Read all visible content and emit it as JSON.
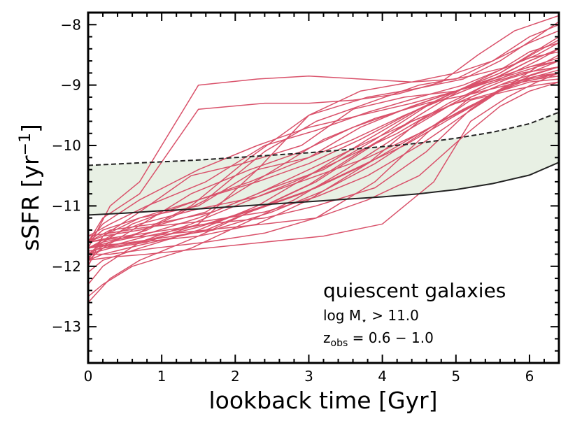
{
  "chart_data": {
    "type": "line",
    "title": "",
    "xlabel": "lookback time [Gyr]",
    "ylabel_main": "sSFR [yr",
    "ylabel_sup": "−1",
    "ylabel_close": "]",
    "xlim": [
      0,
      6.4
    ],
    "ylim": [
      -13.6,
      -7.8
    ],
    "xticks": [
      0,
      1,
      2,
      3,
      4,
      5,
      6
    ],
    "xtick_labels": [
      "0",
      "1",
      "2",
      "3",
      "4",
      "5",
      "6"
    ],
    "yticks": [
      -13,
      -12,
      -11,
      -10,
      -9,
      -8
    ],
    "ytick_labels": [
      "−13",
      "−12",
      "−11",
      "−10",
      "−9",
      "−8"
    ],
    "grid": false,
    "annotation": {
      "title": "quiescent galaxies",
      "mass_text": "log M",
      "mass_sub": "⋆",
      "mass_cond": " > 11.0",
      "z_text": "z",
      "z_sub": "obs",
      "z_cond": " = 0.6 − 1.0"
    },
    "colors": {
      "tracks": "#d9516a",
      "band_fill": "#e8f0e4",
      "band_edge": "#222222"
    },
    "band": {
      "x": [
        0,
        0.5,
        1,
        1.5,
        2,
        2.5,
        3,
        3.5,
        4,
        4.5,
        5,
        5.5,
        6,
        6.4
      ],
      "upper": [
        -10.33,
        -10.3,
        -10.27,
        -10.24,
        -10.2,
        -10.16,
        -10.12,
        -10.07,
        -10.02,
        -9.96,
        -9.88,
        -9.78,
        -9.64,
        -9.45
      ],
      "lower": [
        -11.15,
        -11.12,
        -11.08,
        -11.05,
        -11.01,
        -10.97,
        -10.93,
        -10.89,
        -10.85,
        -10.8,
        -10.73,
        -10.63,
        -10.49,
        -10.28
      ]
    },
    "series": [
      {
        "x": [
          0,
          0.3,
          0.7,
          1.5,
          2.3,
          3.0,
          3.7,
          4.4,
          5.0,
          5.5,
          6.0,
          6.4
        ],
        "values": [
          -11.7,
          -11.0,
          -10.6,
          -9.0,
          -8.9,
          -8.85,
          -8.9,
          -8.95,
          -8.9,
          -8.6,
          -8.2,
          -8.0
        ]
      },
      {
        "x": [
          0,
          0.2,
          0.7,
          1.5,
          2.4,
          3.0,
          3.6,
          4.2,
          4.8,
          5.3,
          5.8,
          6.4
        ],
        "values": [
          -11.6,
          -11.2,
          -10.8,
          -9.4,
          -9.3,
          -9.3,
          -9.25,
          -9.15,
          -8.95,
          -8.5,
          -8.1,
          -7.85
        ]
      },
      {
        "x": [
          0,
          0.2,
          0.7,
          1.4,
          2.1,
          2.9,
          3.6,
          4.3,
          5.0,
          5.6,
          6.1,
          6.4
        ],
        "values": [
          -11.9,
          -11.5,
          -11.1,
          -10.5,
          -10.3,
          -10.0,
          -9.4,
          -9.2,
          -9.1,
          -8.9,
          -8.6,
          -8.4
        ]
      },
      {
        "x": [
          0,
          0.3,
          0.8,
          1.6,
          2.4,
          3.1,
          3.8,
          4.5,
          5.2,
          5.7,
          6.1,
          6.4
        ],
        "values": [
          -11.7,
          -11.6,
          -11.4,
          -10.9,
          -10.1,
          -9.6,
          -9.3,
          -9.0,
          -8.85,
          -8.7,
          -8.5,
          -8.3
        ]
      },
      {
        "x": [
          0,
          0.2,
          0.7,
          1.5,
          2.3,
          3.0,
          3.7,
          4.4,
          5.0,
          5.6,
          6.1,
          6.4
        ],
        "values": [
          -12.0,
          -11.5,
          -11.2,
          -11.0,
          -10.4,
          -10.2,
          -9.7,
          -9.35,
          -9.1,
          -8.8,
          -8.45,
          -8.25
        ]
      },
      {
        "x": [
          0,
          0.3,
          0.8,
          1.6,
          2.4,
          3.1,
          3.8,
          4.5,
          5.1,
          5.6,
          6.0,
          6.4
        ],
        "values": [
          -11.5,
          -11.3,
          -11.0,
          -10.6,
          -10.0,
          -9.75,
          -9.45,
          -9.2,
          -9.0,
          -8.75,
          -8.55,
          -8.45
        ]
      },
      {
        "x": [
          0,
          0.2,
          0.6,
          1.5,
          2.2,
          2.8,
          3.6,
          4.3,
          5.0,
          5.5,
          6.0,
          6.4
        ],
        "values": [
          -11.8,
          -11.6,
          -11.3,
          -10.9,
          -10.6,
          -10.3,
          -9.9,
          -9.5,
          -9.15,
          -8.9,
          -8.7,
          -8.55
        ]
      },
      {
        "x": [
          0,
          0.3,
          0.9,
          1.7,
          2.5,
          3.2,
          3.9,
          4.6,
          5.2,
          5.7,
          6.1,
          6.4
        ],
        "values": [
          -11.6,
          -11.4,
          -11.3,
          -11.1,
          -10.7,
          -10.4,
          -9.9,
          -9.35,
          -9.05,
          -8.85,
          -8.7,
          -8.6
        ]
      },
      {
        "x": [
          0,
          0.2,
          0.7,
          1.4,
          2.1,
          2.8,
          3.5,
          4.2,
          4.9,
          5.4,
          5.9,
          6.4
        ],
        "values": [
          -12.3,
          -12.0,
          -11.6,
          -11.3,
          -10.95,
          -10.6,
          -10.2,
          -9.8,
          -9.3,
          -9.0,
          -8.8,
          -8.7
        ]
      },
      {
        "x": [
          0,
          0.3,
          0.7,
          1.5,
          2.3,
          3.0,
          3.7,
          4.4,
          5.0,
          5.6,
          6.1,
          6.4
        ],
        "values": [
          -11.8,
          -11.6,
          -11.5,
          -11.2,
          -10.8,
          -10.4,
          -10.0,
          -9.6,
          -9.3,
          -9.0,
          -8.85,
          -8.8
        ]
      },
      {
        "x": [
          0,
          0.2,
          0.8,
          1.6,
          2.4,
          3.1,
          3.8,
          4.5,
          5.2,
          5.7,
          6.1,
          6.4
        ],
        "values": [
          -11.9,
          -11.7,
          -11.5,
          -11.3,
          -11.0,
          -10.7,
          -10.3,
          -9.8,
          -9.35,
          -9.0,
          -8.9,
          -8.85
        ]
      },
      {
        "x": [
          0,
          0.3,
          0.7,
          1.5,
          2.2,
          2.9,
          3.6,
          4.3,
          5.0,
          5.6,
          6.0,
          6.4
        ],
        "values": [
          -12.6,
          -12.2,
          -11.9,
          -11.5,
          -11.1,
          -10.8,
          -10.4,
          -10.0,
          -9.5,
          -9.1,
          -8.95,
          -8.9
        ]
      },
      {
        "x": [
          0,
          0.2,
          0.7,
          1.6,
          2.4,
          3.2,
          3.9,
          4.6,
          5.2,
          5.7,
          6.1,
          6.4
        ],
        "values": [
          -11.6,
          -11.5,
          -11.4,
          -11.1,
          -10.5,
          -9.9,
          -9.55,
          -9.3,
          -9.15,
          -9.0,
          -8.9,
          -8.8
        ]
      },
      {
        "x": [
          0,
          0.3,
          0.9,
          1.7,
          2.5,
          3.2,
          3.9,
          4.6,
          5.2,
          5.7,
          6.1,
          6.4
        ],
        "values": [
          -11.7,
          -11.65,
          -11.55,
          -11.4,
          -11.1,
          -10.75,
          -10.3,
          -9.75,
          -9.25,
          -9.1,
          -9.0,
          -8.95
        ]
      },
      {
        "x": [
          0,
          0.2,
          0.7,
          1.5,
          2.3,
          3.0,
          3.7,
          4.4,
          5.0,
          5.6,
          6.0,
          6.4
        ],
        "values": [
          -11.6,
          -11.4,
          -11.2,
          -10.9,
          -10.6,
          -10.3,
          -9.9,
          -9.45,
          -9.1,
          -8.8,
          -8.5,
          -8.2
        ]
      },
      {
        "x": [
          0,
          0.2,
          0.6,
          1.4,
          2.2,
          3.0,
          3.7,
          4.4,
          5.0,
          5.5,
          6.0,
          6.4
        ],
        "values": [
          -11.7,
          -11.6,
          -11.5,
          -11.0,
          -10.2,
          -9.5,
          -9.1,
          -8.95,
          -8.8,
          -8.6,
          -8.3,
          -8.1
        ]
      },
      {
        "x": [
          0,
          0.3,
          0.8,
          1.5,
          2.3,
          3.0,
          3.8,
          4.5,
          5.1,
          5.6,
          6.1,
          6.4
        ],
        "values": [
          -11.8,
          -11.7,
          -11.6,
          -11.3,
          -10.4,
          -9.5,
          -9.2,
          -9.05,
          -8.9,
          -8.6,
          -8.2,
          -7.95
        ]
      },
      {
        "x": [
          0,
          0.2,
          0.7,
          1.6,
          2.4,
          3.1,
          3.8,
          4.5,
          5.1,
          5.6,
          6.0,
          6.4
        ],
        "values": [
          -11.9,
          -11.8,
          -11.65,
          -11.4,
          -11.0,
          -10.6,
          -10.05,
          -9.5,
          -9.05,
          -8.75,
          -8.45,
          -8.3
        ]
      },
      {
        "x": [
          0,
          0.3,
          0.8,
          1.6,
          2.4,
          3.1,
          3.8,
          4.5,
          5.1,
          5.6,
          6.1,
          6.4
        ],
        "values": [
          -11.5,
          -11.45,
          -11.35,
          -11.25,
          -11.1,
          -10.85,
          -10.5,
          -10.0,
          -9.5,
          -9.1,
          -8.7,
          -8.5
        ]
      },
      {
        "x": [
          0,
          0.2,
          0.7,
          1.5,
          2.3,
          3.0,
          3.8,
          4.5,
          5.1,
          5.6,
          6.0,
          6.4
        ],
        "values": [
          -12.1,
          -11.9,
          -11.7,
          -11.4,
          -11.0,
          -10.5,
          -9.9,
          -9.4,
          -9.05,
          -8.85,
          -8.6,
          -8.4
        ]
      },
      {
        "x": [
          0,
          0.2,
          0.7,
          1.5,
          2.3,
          3.0,
          3.8,
          4.5,
          5.2,
          5.7,
          6.1,
          6.4
        ],
        "values": [
          -11.7,
          -11.65,
          -11.6,
          -11.5,
          -11.3,
          -10.9,
          -10.3,
          -9.6,
          -9.15,
          -8.9,
          -8.75,
          -8.6
        ]
      },
      {
        "x": [
          0,
          0.3,
          0.9,
          1.6,
          2.4,
          3.1,
          3.9,
          4.6,
          5.2,
          5.7,
          6.1,
          6.4
        ],
        "values": [
          -11.8,
          -11.8,
          -11.7,
          -11.6,
          -11.45,
          -11.2,
          -10.6,
          -9.8,
          -9.2,
          -8.95,
          -8.8,
          -8.7
        ]
      },
      {
        "x": [
          0,
          0.2,
          0.7,
          1.5,
          2.3,
          3.0,
          3.7,
          4.4,
          5.0,
          5.5,
          6.0,
          6.4
        ],
        "values": [
          -11.6,
          -11.3,
          -10.9,
          -10.4,
          -10.0,
          -9.7,
          -9.5,
          -9.3,
          -9.1,
          -8.9,
          -8.7,
          -8.6
        ]
      },
      {
        "x": [
          0,
          0.2,
          0.6,
          1.4,
          2.1,
          2.8,
          3.5,
          4.2,
          4.9,
          5.4,
          5.9,
          6.4
        ],
        "values": [
          -12.5,
          -12.3,
          -12.0,
          -11.7,
          -11.3,
          -10.9,
          -10.4,
          -9.85,
          -9.35,
          -9.0,
          -8.8,
          -8.7
        ]
      },
      {
        "x": [
          0,
          0.3,
          0.7,
          1.5,
          2.3,
          3.0,
          3.8,
          4.5,
          5.1,
          5.6,
          6.0,
          6.4
        ],
        "values": [
          -11.7,
          -11.5,
          -11.3,
          -11.05,
          -10.85,
          -10.55,
          -10.2,
          -9.8,
          -9.4,
          -9.1,
          -8.85,
          -8.7
        ]
      },
      {
        "x": [
          0,
          0.2,
          0.8,
          1.6,
          2.4,
          3.1,
          3.9,
          4.6,
          5.2,
          5.7,
          6.1,
          6.4
        ],
        "values": [
          -11.6,
          -11.55,
          -11.45,
          -11.3,
          -11.2,
          -11.0,
          -10.7,
          -10.1,
          -9.4,
          -9.0,
          -8.85,
          -8.75
        ]
      },
      {
        "x": [
          0,
          0.2,
          0.7,
          1.5,
          2.3,
          3.0,
          3.7,
          4.4,
          5.0,
          5.6,
          6.0,
          6.4
        ],
        "values": [
          -11.75,
          -11.7,
          -11.6,
          -11.35,
          -11.05,
          -10.65,
          -10.1,
          -9.6,
          -9.3,
          -9.1,
          -8.9,
          -8.8
        ]
      },
      {
        "x": [
          0,
          0.3,
          0.8,
          1.6,
          2.4,
          3.2,
          4.0,
          4.7,
          5.2,
          5.7,
          6.1,
          6.4
        ],
        "values": [
          -11.9,
          -11.85,
          -11.8,
          -11.7,
          -11.6,
          -11.5,
          -11.3,
          -10.6,
          -9.6,
          -9.2,
          -8.95,
          -8.8
        ]
      },
      {
        "x": [
          0,
          0.2,
          0.6,
          1.4,
          2.2,
          2.9,
          3.6,
          4.3,
          5.0,
          5.5,
          6.0,
          6.4
        ],
        "values": [
          -11.85,
          -11.7,
          -11.4,
          -10.8,
          -10.4,
          -10.1,
          -9.7,
          -9.4,
          -9.1,
          -8.9,
          -8.6,
          -8.4
        ]
      },
      {
        "x": [
          0,
          0.3,
          0.8,
          1.6,
          2.4,
          3.1,
          3.8,
          4.5,
          5.1,
          5.6,
          6.0,
          6.4
        ],
        "values": [
          -11.6,
          -11.55,
          -11.5,
          -11.4,
          -11.3,
          -11.2,
          -10.9,
          -10.5,
          -9.85,
          -9.35,
          -9.1,
          -8.95
        ]
      }
    ]
  }
}
